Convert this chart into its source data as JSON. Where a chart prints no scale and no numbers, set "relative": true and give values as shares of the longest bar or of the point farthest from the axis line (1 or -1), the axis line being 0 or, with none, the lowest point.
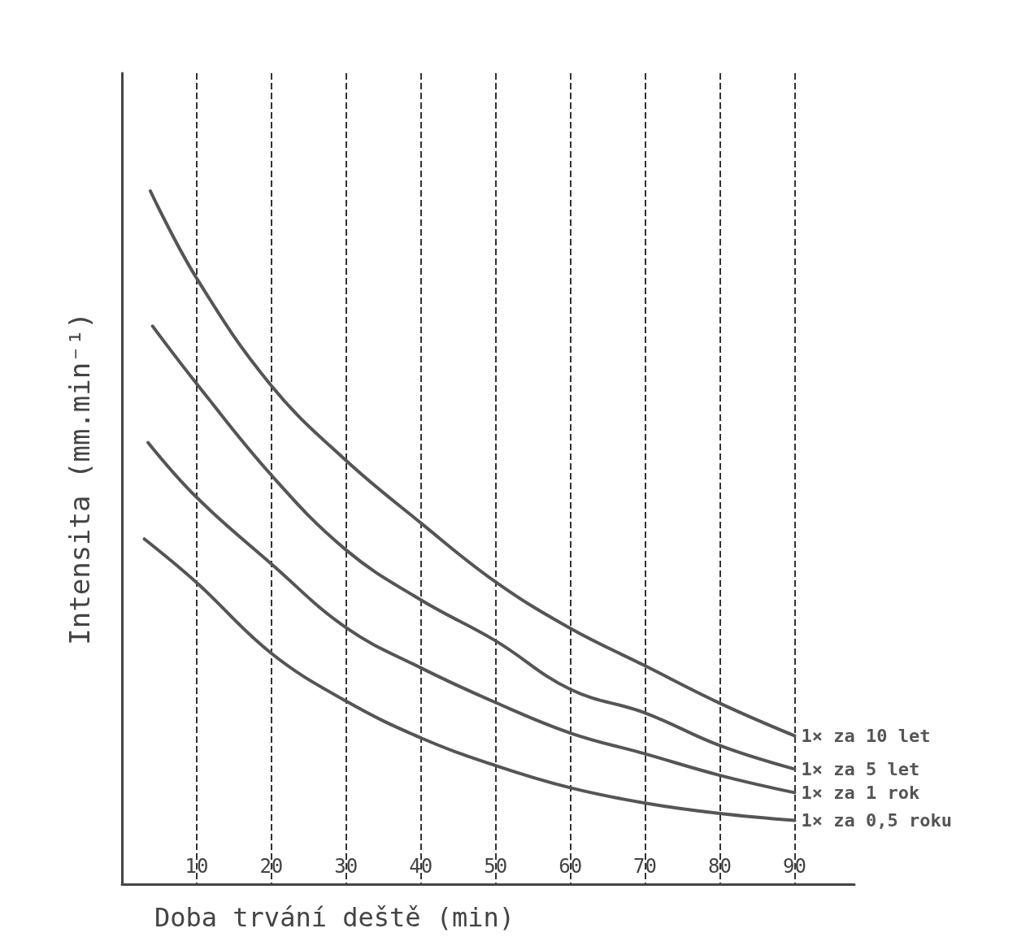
{
  "chart_data": {
    "type": "line",
    "relative": true,
    "xlabel": "Doba trvání deště (min)",
    "ylabel": "Intensita (mm.min⁻¹)",
    "xlim": [
      0,
      98
    ],
    "xticks": [
      10,
      20,
      30,
      40,
      50,
      60,
      70,
      80,
      90
    ],
    "grid": "x",
    "legend": false,
    "marker": "none",
    "line_style": "solid",
    "series": [
      {
        "name": "1× za 10 let",
        "color": "#555555",
        "x": [
          3.8,
          10,
          20,
          30,
          40,
          50,
          60,
          70,
          80,
          90
        ],
        "values": [
          1.0,
          0.874,
          0.719,
          0.611,
          0.521,
          0.436,
          0.369,
          0.315,
          0.261,
          0.214
        ]
      },
      {
        "name": "1× za 5 let",
        "color": "#555555",
        "x": [
          4.1,
          10,
          20,
          30,
          40,
          50,
          60,
          70,
          80,
          90
        ],
        "values": [
          0.805,
          0.722,
          0.59,
          0.482,
          0.41,
          0.351,
          0.281,
          0.247,
          0.2,
          0.166
        ]
      },
      {
        "name": "1× za 1 rok",
        "color": "#555555",
        "x": [
          3.5,
          10,
          20,
          30,
          40,
          50,
          60,
          70,
          80,
          90
        ],
        "values": [
          0.637,
          0.558,
          0.462,
          0.37,
          0.312,
          0.262,
          0.218,
          0.188,
          0.157,
          0.132
        ]
      },
      {
        "name": "1× za 0,5 roku",
        "color": "#555555",
        "x": [
          3.0,
          10,
          20,
          30,
          40,
          50,
          60,
          70,
          80,
          90
        ],
        "values": [
          0.498,
          0.435,
          0.333,
          0.264,
          0.211,
          0.171,
          0.139,
          0.117,
          0.102,
          0.092
        ]
      }
    ]
  }
}
